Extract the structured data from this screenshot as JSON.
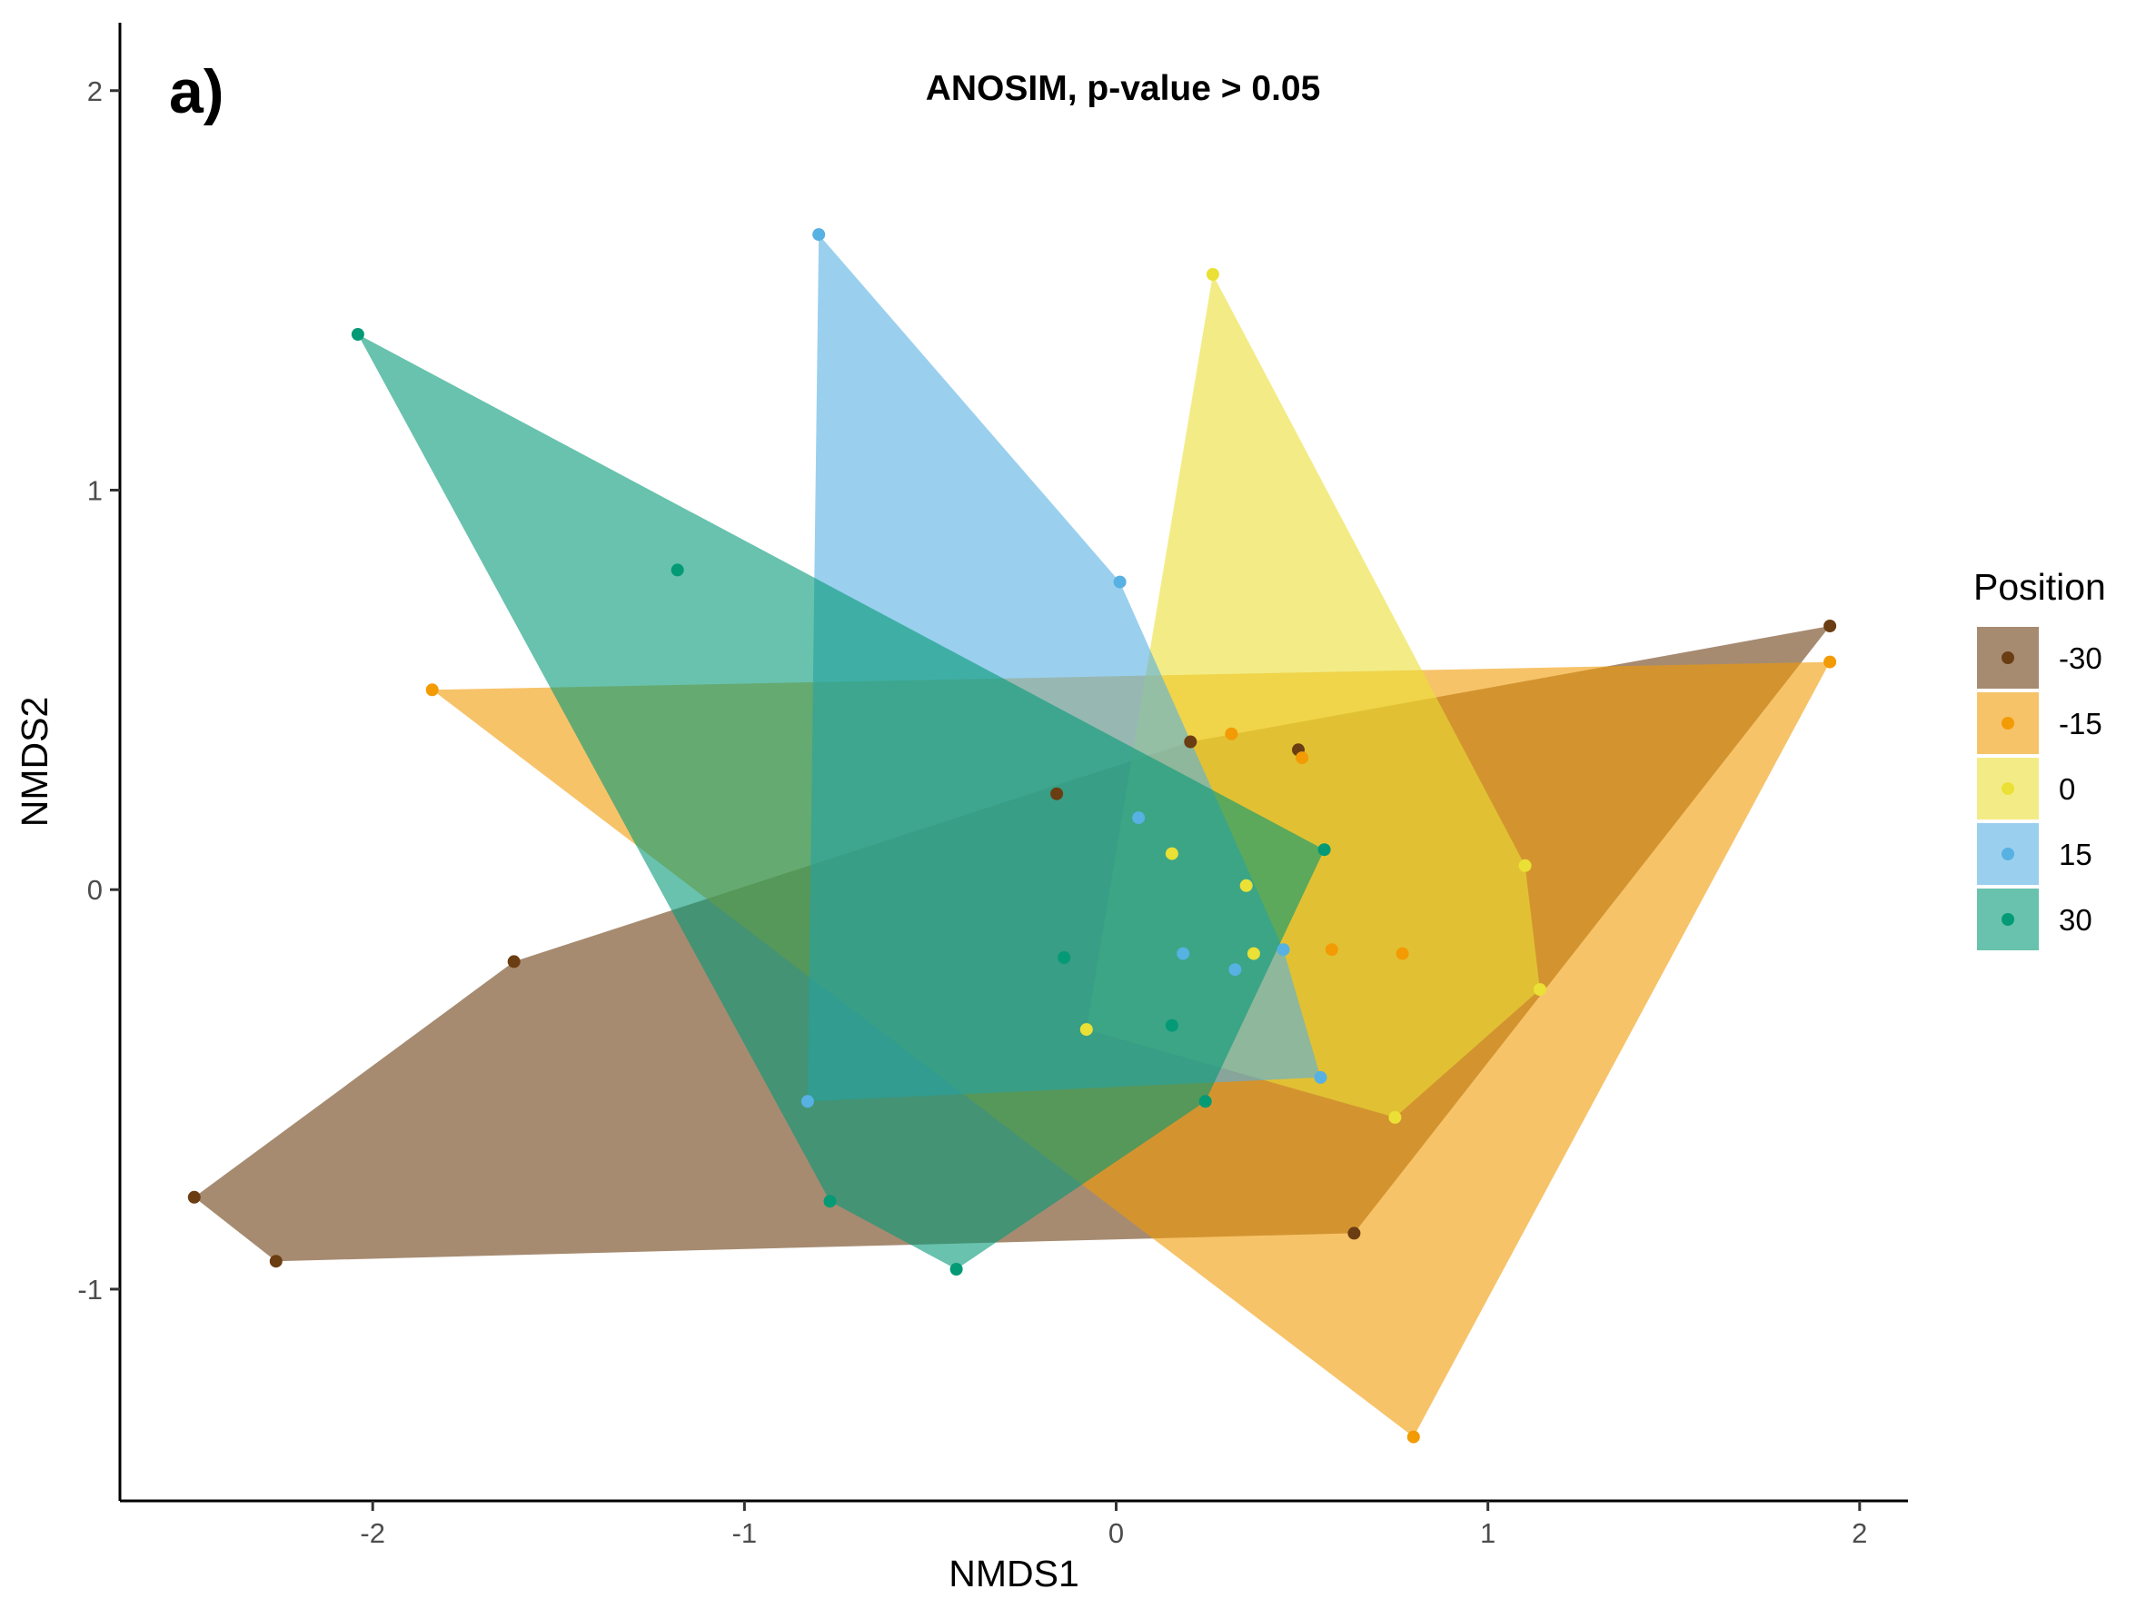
{
  "panel_tag": "a)",
  "chart_data": {
    "type": "scatter",
    "title": "ANOSIM, p-value > 0.05",
    "xlabel": "NMDS1",
    "ylabel": "NMDS2",
    "xlim": [
      -2.68,
      2.13
    ],
    "ylim": [
      -1.53,
      2.17
    ],
    "x_ticks": [
      -2,
      -1,
      0,
      1,
      2
    ],
    "y_ticks": [
      -1,
      0,
      1,
      2
    ],
    "x_tick_labels": [
      "-2",
      "-1",
      "0",
      "1",
      "2"
    ],
    "y_tick_labels": [
      "-1",
      "0",
      "1",
      "2"
    ],
    "grid": false,
    "legend": {
      "title": "Position",
      "placement": "right"
    },
    "hulls": "convex hull polygon per group, semi-transparent fill",
    "series": [
      {
        "name": "-30",
        "color": "#6b3d12",
        "fill": "#a68b70",
        "points": [
          [
            -2.48,
            -0.77
          ],
          [
            -2.26,
            -0.93
          ],
          [
            -1.62,
            -0.18
          ],
          [
            -0.16,
            0.24
          ],
          [
            0.2,
            0.37
          ],
          [
            0.49,
            0.35
          ],
          [
            0.64,
            -0.86
          ],
          [
            1.92,
            0.66
          ]
        ]
      },
      {
        "name": "-15",
        "color": "#f29b05",
        "fill": "#fec865",
        "points": [
          [
            -1.84,
            0.5
          ],
          [
            0.31,
            0.39
          ],
          [
            0.5,
            0.33
          ],
          [
            0.58,
            -0.15
          ],
          [
            0.77,
            -0.16
          ],
          [
            0.8,
            -1.37
          ],
          [
            1.92,
            0.57
          ]
        ]
      },
      {
        "name": "0",
        "color": "#ebe035",
        "fill": "#f3ec8b",
        "points": [
          [
            0.26,
            1.54
          ],
          [
            0.15,
            0.09
          ],
          [
            0.35,
            0.01
          ],
          [
            0.37,
            -0.16
          ],
          [
            -0.08,
            -0.35
          ],
          [
            0.75,
            -0.57
          ],
          [
            1.1,
            0.06
          ],
          [
            1.14,
            -0.25
          ]
        ]
      },
      {
        "name": "15",
        "color": "#57b1e2",
        "fill": "#9ed2ef",
        "points": [
          [
            -0.8,
            1.64
          ],
          [
            0.01,
            0.77
          ],
          [
            0.06,
            0.18
          ],
          [
            0.18,
            -0.16
          ],
          [
            0.32,
            -0.2
          ],
          [
            0.45,
            -0.15
          ],
          [
            0.55,
            -0.47
          ],
          [
            -0.83,
            -0.53
          ]
        ]
      },
      {
        "name": "30",
        "color": "#049a76",
        "fill": "#67c6ab",
        "points": [
          [
            -2.04,
            1.39
          ],
          [
            -1.18,
            0.8
          ],
          [
            0.56,
            0.1
          ],
          [
            -0.14,
            -0.17
          ],
          [
            0.15,
            -0.34
          ],
          [
            0.24,
            -0.53
          ],
          [
            -0.77,
            -0.78
          ],
          [
            -0.43,
            -0.95
          ]
        ]
      }
    ]
  }
}
